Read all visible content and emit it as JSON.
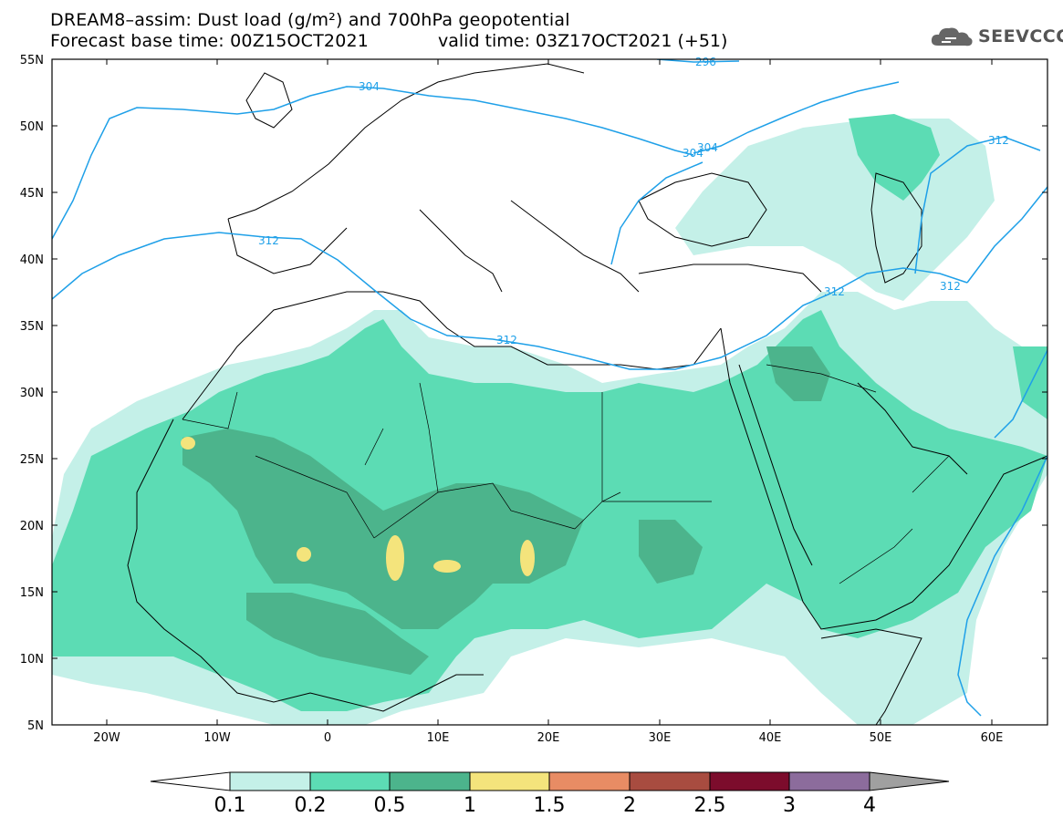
{
  "title_line1": "DREAM8–assim: Dust load (g/m²) and 700hPa geopotential",
  "title_line2_left": "Forecast base time: 00Z15OCT2021",
  "title_line2_right": "valid time: 03Z17OCT2021 (+51)",
  "logo_text": "SEEVCCC",
  "lat_ticks": [
    "55N",
    "50N",
    "45N",
    "40N",
    "35N",
    "30N",
    "25N",
    "20N",
    "15N",
    "10N",
    "5N"
  ],
  "lon_ticks": [
    "20W",
    "10W",
    "0",
    "10E",
    "20E",
    "30E",
    "40E",
    "50E",
    "60E"
  ],
  "contour_labels": [
    "296",
    "304",
    "304",
    "304",
    "312",
    "312",
    "312",
    "312",
    "312"
  ],
  "colorbar": {
    "labels": [
      "0.1",
      "0.2",
      "0.5",
      "1",
      "1.5",
      "2",
      "2.5",
      "3",
      "4"
    ],
    "colors": [
      "#c4f0e8",
      "#5cdcb4",
      "#4cb48c",
      "#f4e47c",
      "#e88c64",
      "#a84c40",
      "#7c0c2c",
      "#8c6c9c"
    ],
    "under_color": "#ffffff",
    "over_color": "#a0a0a0"
  }
}
